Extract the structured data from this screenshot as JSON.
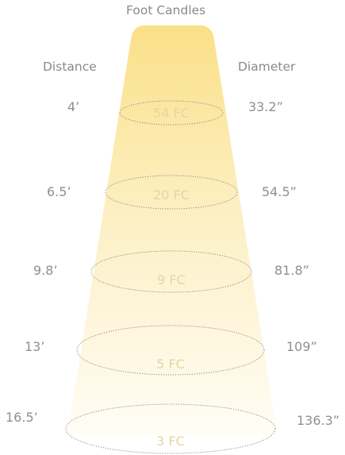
{
  "title": "Foot Candles",
  "left_header": "Distance",
  "right_header": "Diameter",
  "colors": {
    "beam_top": "#fbe088",
    "beam_bottom": "#fffdf5",
    "ring_stroke": "#8a8a8a",
    "label_text": "#8f8f8f",
    "fc_text": "#e3d6a4"
  },
  "levels": [
    {
      "distance": "4’",
      "diameter": "33.2”",
      "fc": "54 FC"
    },
    {
      "distance": "6.5’",
      "diameter": "54.5”",
      "fc": "20 FC"
    },
    {
      "distance": "9.8’",
      "diameter": "81.8”",
      "fc": "9 FC"
    },
    {
      "distance": "13’",
      "diameter": "109”",
      "fc": "5 FC"
    },
    {
      "distance": "16.5’",
      "diameter": "136.3”",
      "fc": "3 FC"
    }
  ]
}
